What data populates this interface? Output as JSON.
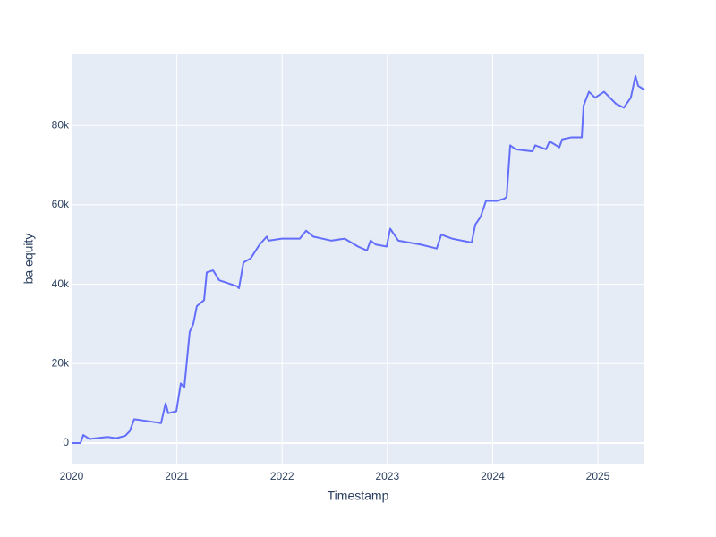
{
  "chart_data": {
    "type": "line",
    "x_label": "Timestamp",
    "y_label": "ba equity",
    "x": [
      2020.0,
      2020.085,
      2020.111,
      2020.17,
      2020.34,
      2020.425,
      2020.51,
      2020.553,
      2020.595,
      2020.723,
      2020.85,
      2020.893,
      2020.918,
      2020.995,
      2021.037,
      2021.071,
      2021.122,
      2021.156,
      2021.19,
      2021.259,
      2021.284,
      2021.344,
      2021.403,
      2021.573,
      2021.59,
      2021.633,
      2021.701,
      2021.786,
      2021.854,
      2021.871,
      2021.998,
      2022.168,
      2022.228,
      2022.296,
      2022.466,
      2022.594,
      2022.721,
      2022.806,
      2022.84,
      2022.891,
      2022.993,
      2023.027,
      2023.104,
      2023.316,
      2023.469,
      2023.512,
      2023.614,
      2023.801,
      2023.835,
      2023.886,
      2023.937,
      2024.039,
      2024.107,
      2024.133,
      2024.167,
      2024.218,
      2024.379,
      2024.405,
      2024.507,
      2024.541,
      2024.634,
      2024.66,
      2024.745,
      2024.847,
      2024.864,
      2024.915,
      2024.974,
      2025.059,
      2025.17,
      2025.247,
      2025.313,
      2025.357,
      2025.383,
      2025.442
    ],
    "series": [
      {
        "color": "#636efa",
        "values": [
          0,
          0,
          2000,
          1000,
          1500,
          1200,
          1800,
          3000,
          6000,
          5500,
          5000,
          10000,
          7500,
          8000,
          15000,
          14000,
          28000,
          30000,
          34500,
          36000,
          43000,
          43500,
          41000,
          39500,
          39000,
          45500,
          46500,
          50000,
          52000,
          51000,
          51500,
          51500,
          53500,
          52000,
          51000,
          51500,
          49500,
          48500,
          51000,
          50000,
          49500,
          54000,
          51000,
          50000,
          49000,
          52500,
          51500,
          50500,
          55000,
          57000,
          61000,
          61000,
          61500,
          62000,
          75000,
          74000,
          73500,
          75000,
          74000,
          76000,
          74500,
          76500,
          77000,
          77000,
          85000,
          88500,
          87000,
          88500,
          85500,
          84500,
          87000,
          92500,
          90000,
          89000
        ]
      }
    ],
    "xlim": [
      2020,
      2025.442
    ],
    "xticks": [
      2020,
      2021,
      2022,
      2023,
      2024,
      2025
    ],
    "ylim": [
      -5200,
      98100
    ],
    "yticks": [
      0,
      {
        "value": 20000,
        "label": "20k"
      },
      {
        "value": 40000,
        "label": "40k"
      },
      {
        "value": 60000,
        "label": "60k"
      },
      {
        "value": 80000,
        "label": "80k"
      }
    ],
    "grid": true,
    "background": "#e5ecf6"
  }
}
